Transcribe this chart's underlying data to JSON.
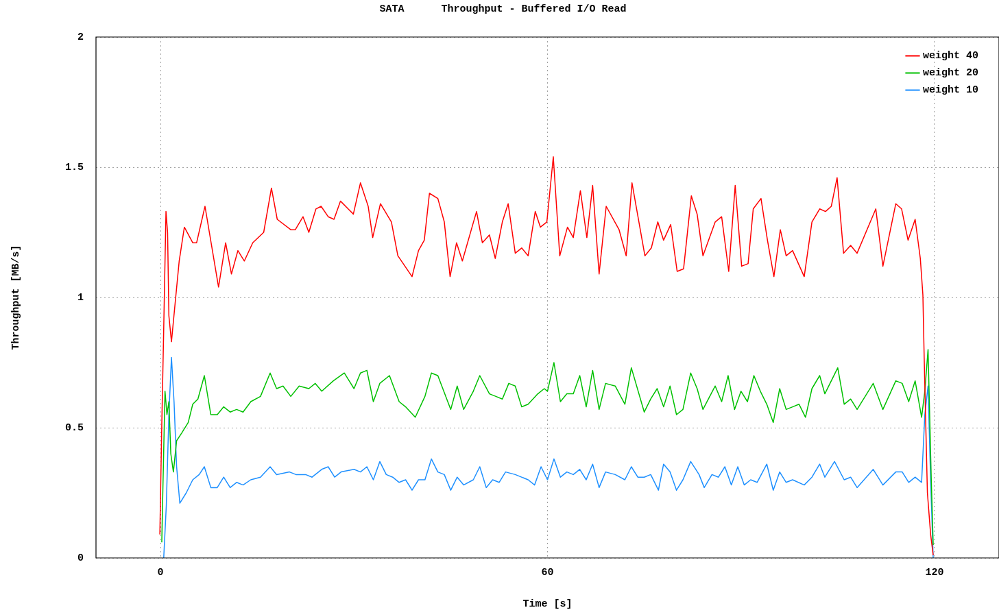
{
  "chart_data": {
    "type": "line",
    "title": "SATA      Throughput - Buffered I/O Read",
    "xlabel": "Time [s]",
    "ylabel": "Throughput [MB/s]",
    "xlim": [
      -10,
      130
    ],
    "ylim": [
      0,
      2
    ],
    "xticks": [
      0,
      60,
      120
    ],
    "yticks": [
      0,
      0.5,
      1,
      1.5,
      2
    ],
    "grid": true,
    "legend": "top right",
    "marker": "none",
    "line_style": "solid",
    "series": [
      {
        "name": "weight 40",
        "color": "#ff0000",
        "x": [
          -0.1,
          0.2,
          0.5,
          0.85,
          1.1,
          1.3,
          1.7,
          2.2,
          2.9,
          3.7,
          5,
          5.6,
          6.9,
          9,
          10.1,
          11,
          12,
          13,
          14.3,
          16,
          17.2,
          18.1,
          20.2,
          20.9,
          22.1,
          23,
          24.1,
          24.9,
          26,
          26.9,
          27.9,
          29.9,
          31,
          32.2,
          32.9,
          34.1,
          35.8,
          36.8,
          39,
          40,
          40.9,
          41.7,
          43,
          44,
          44.9,
          45.9,
          46.8,
          48.3,
          49,
          49.9,
          51,
          51.9,
          53,
          53.9,
          55,
          56,
          57,
          58.1,
          58.9,
          59.9,
          60.9,
          61.9,
          63.1,
          64,
          65.1,
          66.1,
          67,
          68,
          69.1,
          71.1,
          72.2,
          73.1,
          75.1,
          76.1,
          77.1,
          78,
          79.1,
          80.1,
          81.1,
          82.3,
          83.2,
          84.1,
          86,
          87,
          88.1,
          89.1,
          90.1,
          91.1,
          91.9,
          93.1,
          94.1,
          95.1,
          96.1,
          97,
          98,
          99.8,
          101,
          102.2,
          103.1,
          104,
          104.9,
          105.9,
          107,
          108,
          110.9,
          112,
          114,
          114.9,
          115.9,
          117,
          117.8,
          118.2,
          118.4,
          118.6,
          118.9,
          119.4,
          119.8
        ],
        "values": [
          0.09,
          0.51,
          0.88,
          1.33,
          1.25,
          0.93,
          0.83,
          0.96,
          1.14,
          1.27,
          1.21,
          1.21,
          1.35,
          1.04,
          1.21,
          1.09,
          1.18,
          1.14,
          1.21,
          1.25,
          1.42,
          1.3,
          1.26,
          1.26,
          1.31,
          1.25,
          1.34,
          1.35,
          1.31,
          1.3,
          1.37,
          1.32,
          1.44,
          1.35,
          1.23,
          1.36,
          1.29,
          1.16,
          1.08,
          1.18,
          1.22,
          1.4,
          1.38,
          1.29,
          1.08,
          1.21,
          1.14,
          1.27,
          1.33,
          1.21,
          1.24,
          1.15,
          1.29,
          1.36,
          1.17,
          1.19,
          1.16,
          1.33,
          1.27,
          1.29,
          1.54,
          1.16,
          1.27,
          1.23,
          1.41,
          1.23,
          1.43,
          1.09,
          1.35,
          1.26,
          1.16,
          1.44,
          1.16,
          1.19,
          1.29,
          1.22,
          1.28,
          1.1,
          1.11,
          1.39,
          1.32,
          1.16,
          1.29,
          1.31,
          1.1,
          1.43,
          1.12,
          1.13,
          1.34,
          1.38,
          1.22,
          1.08,
          1.26,
          1.16,
          1.18,
          1.08,
          1.29,
          1.34,
          1.33,
          1.35,
          1.46,
          1.17,
          1.2,
          1.17,
          1.34,
          1.12,
          1.36,
          1.34,
          1.22,
          1.3,
          1.15,
          1.01,
          0.77,
          0.56,
          0.25,
          0.09,
          0.01
        ]
      },
      {
        "name": "weight 20",
        "color": "#00c000",
        "x": [
          0.2,
          0.4,
          0.7,
          1,
          1.3,
          1.6,
          2,
          2.5,
          3.3,
          4.3,
          5,
          5.8,
          6.8,
          7.8,
          8.8,
          9.8,
          10.8,
          11.8,
          12.8,
          14,
          15.5,
          17,
          18,
          19,
          20.2,
          21.5,
          23,
          24,
          25,
          26.8,
          28.5,
          30,
          31,
          32,
          33,
          34,
          35.5,
          37,
          38,
          39.5,
          41,
          42,
          43,
          45,
          46,
          47,
          48.5,
          49.5,
          51,
          52,
          53,
          54,
          55,
          56,
          57,
          58.5,
          59.5,
          60,
          61,
          62,
          63,
          64,
          65,
          66,
          67,
          68,
          69,
          70.5,
          72,
          73,
          75,
          76,
          77,
          78,
          79,
          80,
          81,
          82.2,
          83.2,
          84.1,
          86,
          87,
          88,
          89,
          90,
          91,
          92,
          93,
          94,
          95,
          96,
          97,
          98,
          99,
          100,
          101,
          102.2,
          103,
          105,
          106,
          107,
          108,
          110.5,
          112,
          114,
          115,
          116,
          117,
          118,
          118.5,
          119,
          119.3,
          119.5,
          119.8
        ],
        "values": [
          0.06,
          0.3,
          0.64,
          0.55,
          0.6,
          0.4,
          0.33,
          0.45,
          0.48,
          0.52,
          0.59,
          0.61,
          0.7,
          0.55,
          0.55,
          0.58,
          0.56,
          0.57,
          0.56,
          0.6,
          0.62,
          0.71,
          0.65,
          0.66,
          0.62,
          0.66,
          0.65,
          0.67,
          0.64,
          0.68,
          0.71,
          0.65,
          0.71,
          0.72,
          0.6,
          0.67,
          0.7,
          0.6,
          0.58,
          0.54,
          0.62,
          0.71,
          0.7,
          0.57,
          0.66,
          0.57,
          0.64,
          0.7,
          0.63,
          0.62,
          0.61,
          0.67,
          0.66,
          0.58,
          0.59,
          0.63,
          0.65,
          0.64,
          0.75,
          0.6,
          0.63,
          0.63,
          0.7,
          0.58,
          0.72,
          0.57,
          0.67,
          0.66,
          0.59,
          0.73,
          0.56,
          0.61,
          0.65,
          0.58,
          0.66,
          0.55,
          0.57,
          0.71,
          0.65,
          0.57,
          0.66,
          0.6,
          0.7,
          0.57,
          0.64,
          0.6,
          0.7,
          0.64,
          0.59,
          0.52,
          0.65,
          0.57,
          0.58,
          0.59,
          0.54,
          0.65,
          0.7,
          0.63,
          0.73,
          0.59,
          0.61,
          0.57,
          0.67,
          0.57,
          0.68,
          0.67,
          0.6,
          0.68,
          0.54,
          0.64,
          0.8,
          0.5,
          0.3,
          0.05
        ]
      },
      {
        "name": "weight 10",
        "color": "#1e90ff",
        "x": [
          0.5,
          0.9,
          1.3,
          1.7,
          2.1,
          2.5,
          3,
          4,
          5,
          6,
          6.8,
          7.8,
          8.8,
          9.8,
          10.8,
          11.8,
          12.8,
          14,
          15.5,
          17,
          18,
          20,
          21,
          22.5,
          23.5,
          25,
          26,
          27,
          28,
          30,
          31,
          32,
          33,
          34,
          35,
          36,
          37,
          38,
          39,
          40,
          41,
          42,
          43,
          44,
          45,
          46,
          47,
          48.5,
          49.5,
          50.5,
          51.5,
          52.5,
          53.5,
          55,
          57,
          58,
          59,
          60,
          61,
          62,
          63,
          64,
          65,
          66,
          67,
          68,
          69,
          70.5,
          72,
          73,
          74,
          75,
          76,
          77.2,
          78,
          79,
          80,
          81,
          82.2,
          83.5,
          84.3,
          85.5,
          86.5,
          87.5,
          88.5,
          89.5,
          90.5,
          91.5,
          92.5,
          94,
          95,
          96,
          97,
          98,
          99.8,
          101,
          102.2,
          103,
          104.5,
          106,
          107,
          108,
          110.5,
          112,
          114,
          115,
          116,
          117,
          118,
          118.5,
          119,
          119.4,
          119.8
        ],
        "values": [
          0,
          0.2,
          0.55,
          0.77,
          0.6,
          0.35,
          0.21,
          0.25,
          0.3,
          0.32,
          0.35,
          0.27,
          0.27,
          0.31,
          0.27,
          0.29,
          0.28,
          0.3,
          0.31,
          0.35,
          0.32,
          0.33,
          0.32,
          0.32,
          0.31,
          0.34,
          0.35,
          0.31,
          0.33,
          0.34,
          0.33,
          0.35,
          0.3,
          0.37,
          0.32,
          0.31,
          0.29,
          0.3,
          0.26,
          0.3,
          0.3,
          0.38,
          0.33,
          0.32,
          0.26,
          0.31,
          0.28,
          0.3,
          0.35,
          0.27,
          0.3,
          0.29,
          0.33,
          0.32,
          0.3,
          0.28,
          0.35,
          0.3,
          0.38,
          0.31,
          0.33,
          0.32,
          0.34,
          0.3,
          0.36,
          0.27,
          0.33,
          0.32,
          0.3,
          0.35,
          0.31,
          0.31,
          0.32,
          0.26,
          0.36,
          0.33,
          0.26,
          0.3,
          0.37,
          0.32,
          0.27,
          0.32,
          0.31,
          0.35,
          0.28,
          0.35,
          0.28,
          0.3,
          0.29,
          0.36,
          0.26,
          0.33,
          0.29,
          0.3,
          0.28,
          0.31,
          0.36,
          0.31,
          0.37,
          0.3,
          0.31,
          0.27,
          0.34,
          0.28,
          0.33,
          0.33,
          0.29,
          0.31,
          0.29,
          0.55,
          0.66,
          0.3,
          0
        ]
      }
    ]
  }
}
